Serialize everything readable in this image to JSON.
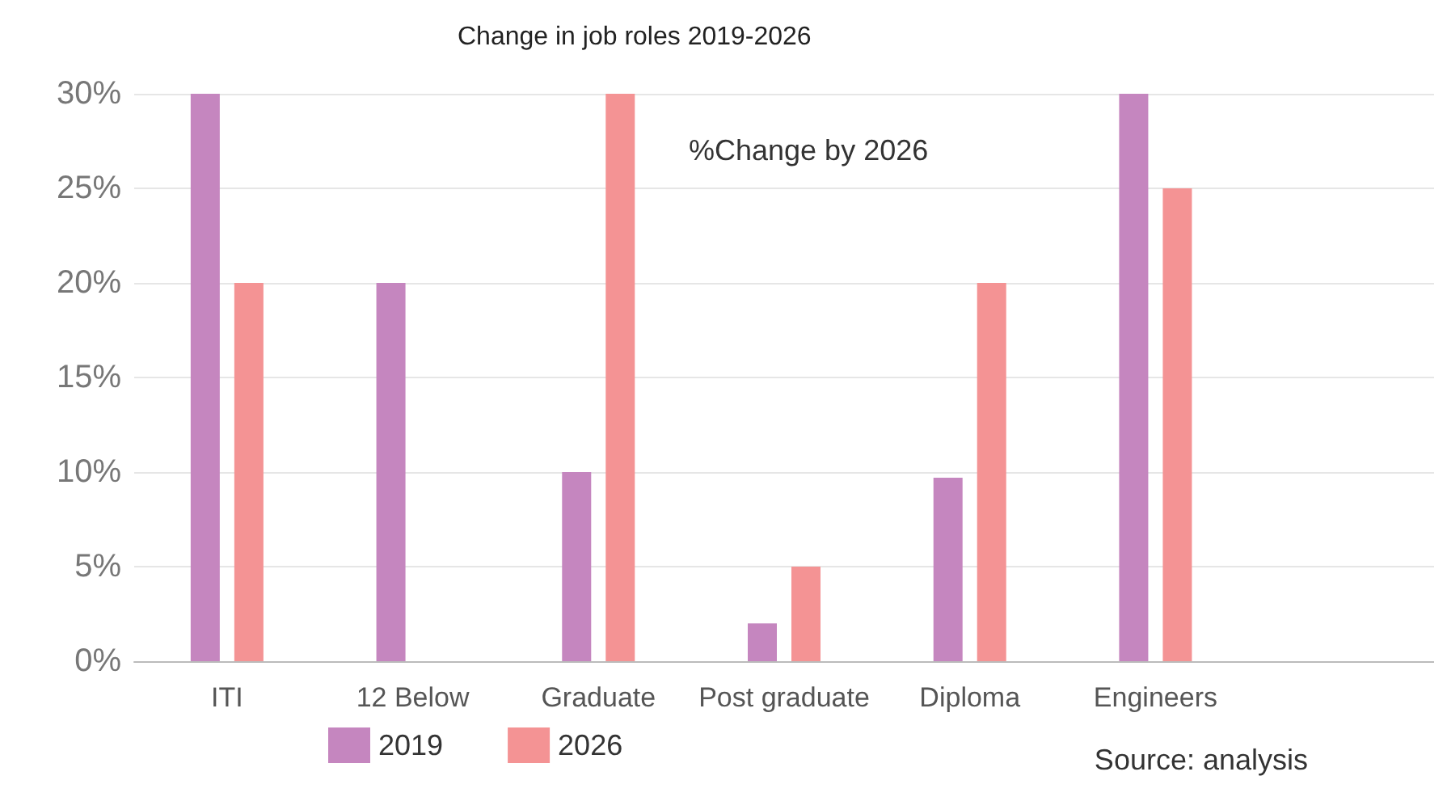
{
  "chart_data": {
    "type": "bar",
    "title": "Change in job roles 2019-2026",
    "categories": [
      "ITI",
      "12 Below",
      "Graduate",
      "Post graduate",
      "Diploma",
      "Engineers",
      null
    ],
    "series": [
      {
        "name": "2019",
        "color": "#c586bf",
        "values": [
          30,
          20,
          10,
          2,
          9.7,
          30,
          null
        ]
      },
      {
        "name": "2026",
        "color": "#f49394",
        "values": [
          20,
          null,
          30,
          5,
          20,
          25,
          null
        ]
      }
    ],
    "ylim": [
      0,
      30
    ],
    "yticks": [
      {
        "value": 0,
        "label": "0%"
      },
      {
        "value": 5,
        "label": "5%"
      },
      {
        "value": 10,
        "label": "10%"
      },
      {
        "value": 15,
        "label": "15%"
      },
      {
        "value": 20,
        "label": "20%"
      },
      {
        "value": 25,
        "label": "25%"
      },
      {
        "value": 30,
        "label": "30%"
      }
    ],
    "grid": "y",
    "legend": "bottom",
    "annotations": [
      "%Change by 2026",
      "Source: analysis"
    ]
  }
}
